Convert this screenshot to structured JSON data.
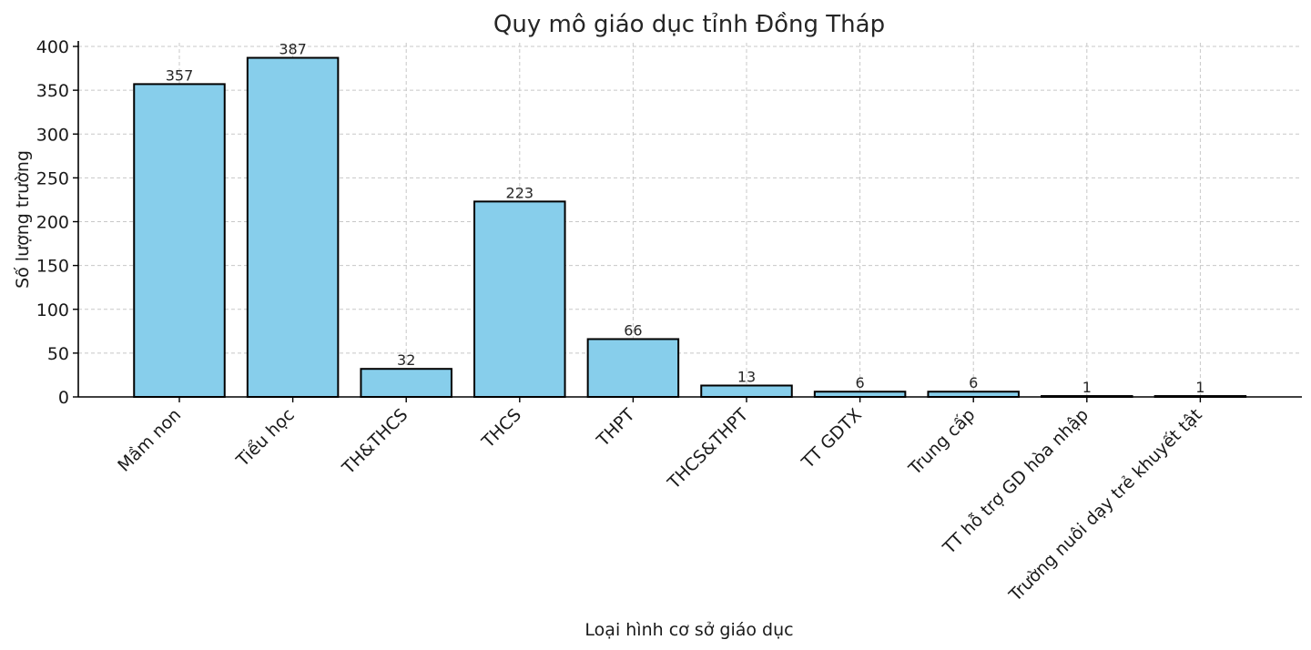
{
  "chart_data": {
    "type": "bar",
    "title": "Quy mô giáo dục tỉnh Đồng Tháp",
    "xlabel": "Loại hình cơ sở giáo dục",
    "ylabel": "Số lượng trường",
    "categories": [
      "Mầm non",
      "Tiểu học",
      "TH&THCS",
      "THCS",
      "THPT",
      "THCS&THPT",
      "TT GDTX",
      "Trung cấp",
      "TT hỗ trợ GD hòa nhập",
      "Trường nuôi dạy trẻ khuyết tật"
    ],
    "values": [
      357,
      387,
      32,
      223,
      66,
      13,
      6,
      6,
      1,
      1
    ],
    "ylim": [
      0,
      400
    ],
    "yticks": [
      0,
      50,
      100,
      150,
      200,
      250,
      300,
      350,
      400
    ],
    "grid": true,
    "bar_color": "#87ceeb",
    "edge_color": "#000000"
  }
}
